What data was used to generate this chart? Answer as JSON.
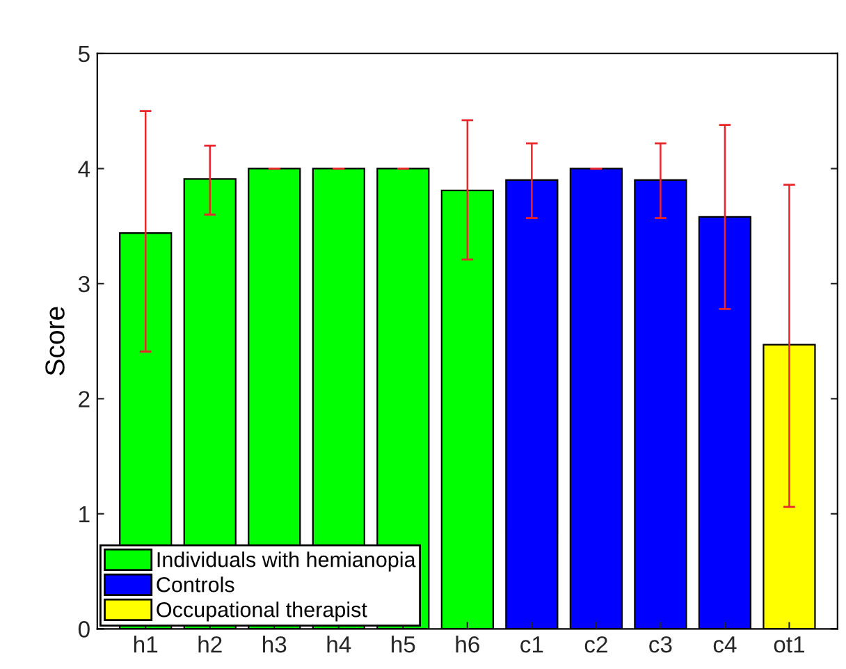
{
  "chart_data": {
    "type": "bar",
    "ylabel": "Score",
    "categories": [
      "h1",
      "h2",
      "h3",
      "h4",
      "h5",
      "h6",
      "c1",
      "c2",
      "c3",
      "c4",
      "ot1"
    ],
    "series": [
      {
        "name": "Individuals with hemianopia",
        "color": "#00ff00",
        "values": [
          3.44,
          3.91,
          4.0,
          4.0,
          4.0,
          3.81,
          null,
          null,
          null,
          null,
          null
        ],
        "errors": [
          [
            2.41,
            4.5
          ],
          [
            3.6,
            4.2
          ],
          [
            4.0,
            4.0
          ],
          [
            4.0,
            4.0
          ],
          [
            4.0,
            4.0
          ],
          [
            3.21,
            4.42
          ],
          null,
          null,
          null,
          null,
          null
        ]
      },
      {
        "name": "Controls",
        "color": "#0000ff",
        "values": [
          null,
          null,
          null,
          null,
          null,
          null,
          3.9,
          4.0,
          3.9,
          3.58,
          null
        ],
        "errors": [
          null,
          null,
          null,
          null,
          null,
          null,
          [
            3.57,
            4.22
          ],
          [
            4.0,
            4.0
          ],
          [
            3.57,
            4.22
          ],
          [
            2.78,
            4.38
          ],
          null
        ]
      },
      {
        "name": "Occupational therapist",
        "color": "#ffff00",
        "values": [
          null,
          null,
          null,
          null,
          null,
          null,
          null,
          null,
          null,
          null,
          2.47
        ],
        "errors": [
          null,
          null,
          null,
          null,
          null,
          null,
          null,
          null,
          null,
          null,
          [
            1.06,
            3.86
          ]
        ]
      }
    ],
    "ylim": [
      0,
      5
    ],
    "yticks": [
      0,
      1,
      2,
      3,
      4,
      5
    ],
    "legend": "bottom left",
    "grid": false
  }
}
